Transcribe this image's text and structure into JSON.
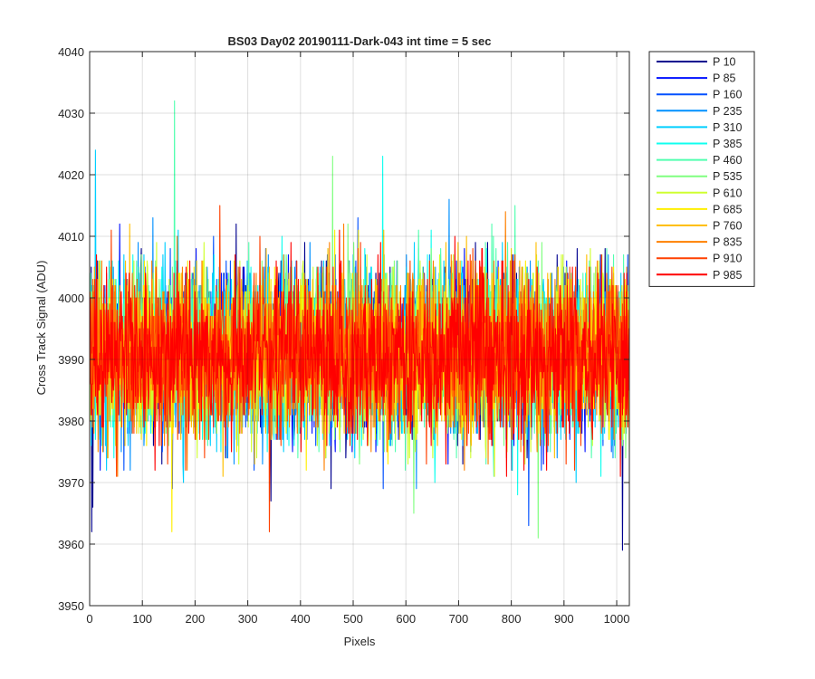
{
  "chart_data": {
    "type": "line",
    "title": "BS03 Day02 20190111-Dark-043 int time = 5 sec",
    "xlabel": "Pixels",
    "ylabel": "Cross Track Signal (ADU)",
    "xlim": [
      0,
      1024
    ],
    "ylim": [
      3950,
      4040
    ],
    "xticks": [
      0,
      100,
      200,
      300,
      400,
      500,
      600,
      700,
      800,
      900,
      1000
    ],
    "yticks": [
      3950,
      3960,
      3970,
      3980,
      3990,
      4000,
      4010,
      4020,
      4030,
      4040
    ],
    "xtick_labels": [
      "0",
      "100",
      "200",
      "300",
      "400",
      "500",
      "600",
      "700",
      "800",
      "900",
      "1000"
    ],
    "ytick_labels": [
      "3950",
      "3960",
      "3970",
      "3980",
      "3990",
      "4000",
      "4010",
      "4020",
      "4030",
      "4040"
    ],
    "grid": true,
    "legend_position": "outside-right-top",
    "noise_model": {
      "points_per_series": 1024,
      "mean": 3991,
      "std": 6.5
    },
    "notable_values": [
      {
        "series": "P 460",
        "x": 160,
        "y": 4032
      },
      {
        "series": "P 10",
        "x": 1010,
        "y": 3959
      },
      {
        "series": "P 10",
        "x": 3,
        "y": 3962
      },
      {
        "series": "P 310",
        "x": 10,
        "y": 4024
      },
      {
        "series": "P 385",
        "x": 555,
        "y": 4023
      },
      {
        "series": "P 535",
        "x": 460,
        "y": 4023
      },
      {
        "series": "P 685",
        "x": 155,
        "y": 3962
      },
      {
        "series": "P 910",
        "x": 340,
        "y": 3962
      },
      {
        "series": "P 535",
        "x": 850,
        "y": 3961
      }
    ],
    "series": [
      {
        "name": "P 10",
        "color": "#00008F"
      },
      {
        "name": "P 85",
        "color": "#0010FF"
      },
      {
        "name": "P 160",
        "color": "#0050FF"
      },
      {
        "name": "P 235",
        "color": "#0090FF"
      },
      {
        "name": "P 310",
        "color": "#00CFFF"
      },
      {
        "name": "P 385",
        "color": "#10FFEF"
      },
      {
        "name": "P 460",
        "color": "#50FFAF"
      },
      {
        "name": "P 535",
        "color": "#80FF80"
      },
      {
        "name": "P 610",
        "color": "#CFFF30"
      },
      {
        "name": "P 685",
        "color": "#FFEF00"
      },
      {
        "name": "P 760",
        "color": "#FFBF00"
      },
      {
        "name": "P 835",
        "color": "#FF8000"
      },
      {
        "name": "P 910",
        "color": "#FF4000"
      },
      {
        "name": "P 985",
        "color": "#FF0000"
      }
    ]
  }
}
